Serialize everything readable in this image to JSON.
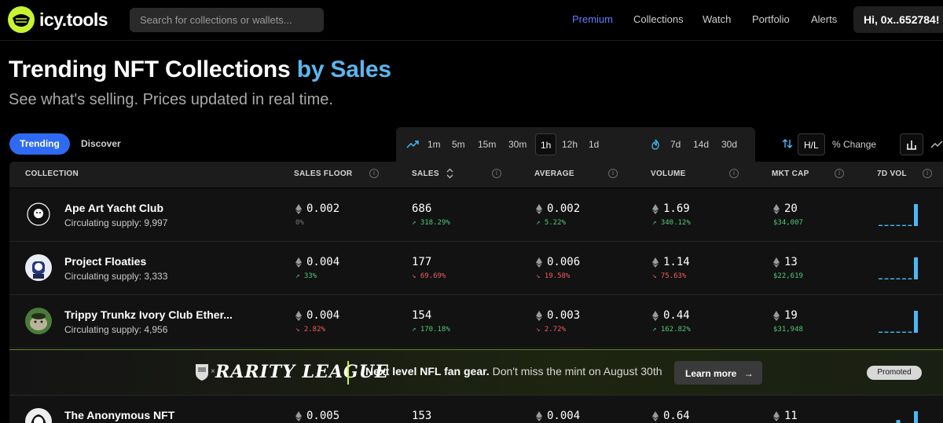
{
  "nav": {
    "logo_text": "icy.tools",
    "search_placeholder": "Search for collections or wallets...",
    "links": [
      "Premium",
      "Collections",
      "Watch",
      "Portfolio",
      "Alerts"
    ],
    "user_label": "Hi, 0x..652784!"
  },
  "hero": {
    "title": "Trending NFT Collections",
    "title_accent": "by Sales",
    "subtitle": "See what's selling. Prices updated in real time."
  },
  "tabs": {
    "trending": "Trending",
    "discover": "Discover"
  },
  "time_ranges": [
    "1m",
    "5m",
    "15m",
    "30m",
    "1h",
    "12h",
    "1d"
  ],
  "active_time_range": "1h",
  "day_ranges": [
    "7d",
    "14d",
    "30d"
  ],
  "display_modes": {
    "hl": "H/L",
    "pct": "% Change"
  },
  "table": {
    "headers": {
      "collection": "COLLECTION",
      "sales_floor": "SALES FLOOR",
      "sales": "SALES",
      "average": "AVERAGE",
      "volume": "VOLUME",
      "mkt_cap": "MKT CAP",
      "vol7d": "7D VOL"
    },
    "rows": [
      {
        "name": "Ape Art Yacht Club",
        "supply": "Circulating supply: 9,997",
        "floor": "0.002",
        "floor_chg": "0%",
        "floor_dir": "neutral",
        "sales": "686",
        "sales_chg": "318.29%",
        "sales_dir": "up",
        "avg": "0.002",
        "avg_chg": "5.22%",
        "avg_dir": "up",
        "volume": "1.69",
        "volume_chg": "340.12%",
        "volume_dir": "up",
        "mcap": "20",
        "mcap_usd": "$34,007",
        "spark": [
          0.05,
          0.05,
          0.05,
          0.05,
          0.05,
          0.05,
          1.0
        ]
      },
      {
        "name": "Project Floaties",
        "supply": "Circulating supply: 3,333",
        "floor": "0.004",
        "floor_chg": "33%",
        "floor_dir": "up",
        "sales": "177",
        "sales_chg": "69.69%",
        "sales_dir": "down",
        "avg": "0.006",
        "avg_chg": "19.58%",
        "avg_dir": "down",
        "volume": "1.14",
        "volume_chg": "75.63%",
        "volume_dir": "down",
        "mcap": "13",
        "mcap_usd": "$22,619",
        "spark": [
          0.05,
          0.05,
          0.05,
          0.05,
          0.05,
          0.05,
          1.0
        ]
      },
      {
        "name": "Trippy Trunkz Ivory Club Ether...",
        "supply": "Circulating supply: 4,956",
        "floor": "0.004",
        "floor_chg": "2.82%",
        "floor_dir": "down",
        "sales": "154",
        "sales_chg": "170.18%",
        "sales_dir": "up",
        "avg": "0.003",
        "avg_chg": "2.72%",
        "avg_dir": "down",
        "volume": "0.44",
        "volume_chg": "162.82%",
        "volume_dir": "up",
        "mcap": "19",
        "mcap_usd": "$31,948",
        "spark": [
          0.05,
          0.05,
          0.05,
          0.05,
          0.05,
          0.05,
          1.0
        ]
      },
      {
        "name": "The Anonymous NFT",
        "supply": "",
        "floor": "0.005",
        "floor_chg": "",
        "floor_dir": "neutral",
        "sales": "153",
        "sales_chg": "",
        "sales_dir": "neutral",
        "avg": "0.004",
        "avg_chg": "",
        "avg_dir": "neutral",
        "volume": "0.64",
        "volume_chg": "",
        "volume_dir": "neutral",
        "mcap": "11",
        "mcap_usd": "",
        "spark": [
          0.05,
          0.05,
          0.05,
          0.6,
          0.05,
          0.05,
          1.0
        ]
      }
    ]
  },
  "banner": {
    "brand": "RARITY LEAGUE",
    "bold_text": "Next level NFL fan gear.",
    "text": " Don't miss the mint on August 30th",
    "cta": "Learn more",
    "badge": "Promoted"
  },
  "colors": {
    "accent_blue": "#2f6bf2",
    "title_accent": "#5cb6ee",
    "up": "#4ecb7a",
    "down": "#f25d5d",
    "spark": "#4cb8f5",
    "brand_lime": "#c6f432"
  }
}
